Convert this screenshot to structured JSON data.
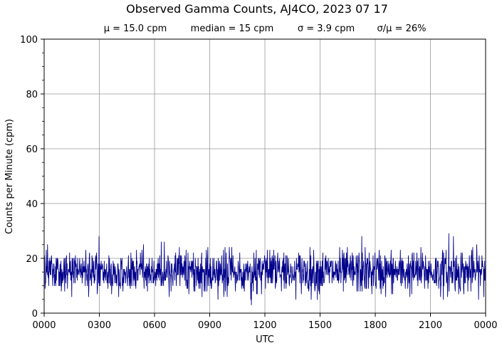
{
  "chart_data": {
    "type": "line",
    "title": "Observed Gamma Counts, AJ4CO, 2023 07 17",
    "stats": [
      "μ = 15.0 cpm",
      "median = 15 cpm",
      "σ = 3.9 cpm",
      "σ/μ = 26%"
    ],
    "xlabel": "UTC",
    "ylabel": "Counts per Minute (cpm)",
    "xlim": [
      0,
      1440
    ],
    "ylim": [
      0,
      100
    ],
    "x_tick_labels": [
      "0000",
      "0300",
      "0600",
      "0900",
      "1200",
      "1500",
      "1800",
      "2100",
      "0000"
    ],
    "y_tick_labels": [
      "0",
      "20",
      "40",
      "60",
      "80",
      "100"
    ],
    "grid": true,
    "series": [
      {
        "color": "#00008b",
        "x_step_minutes": 1,
        "mean": 15.0,
        "median": 15,
        "std": 3.9,
        "min": 3,
        "max": 29,
        "peaks": [
          {
            "x": 1320,
            "y": 29
          },
          {
            "x": 1335,
            "y": 28
          },
          {
            "x": 1036,
            "y": 28
          },
          {
            "x": 179,
            "y": 28
          },
          {
            "x": 676,
            "y": 3
          }
        ]
      }
    ]
  }
}
